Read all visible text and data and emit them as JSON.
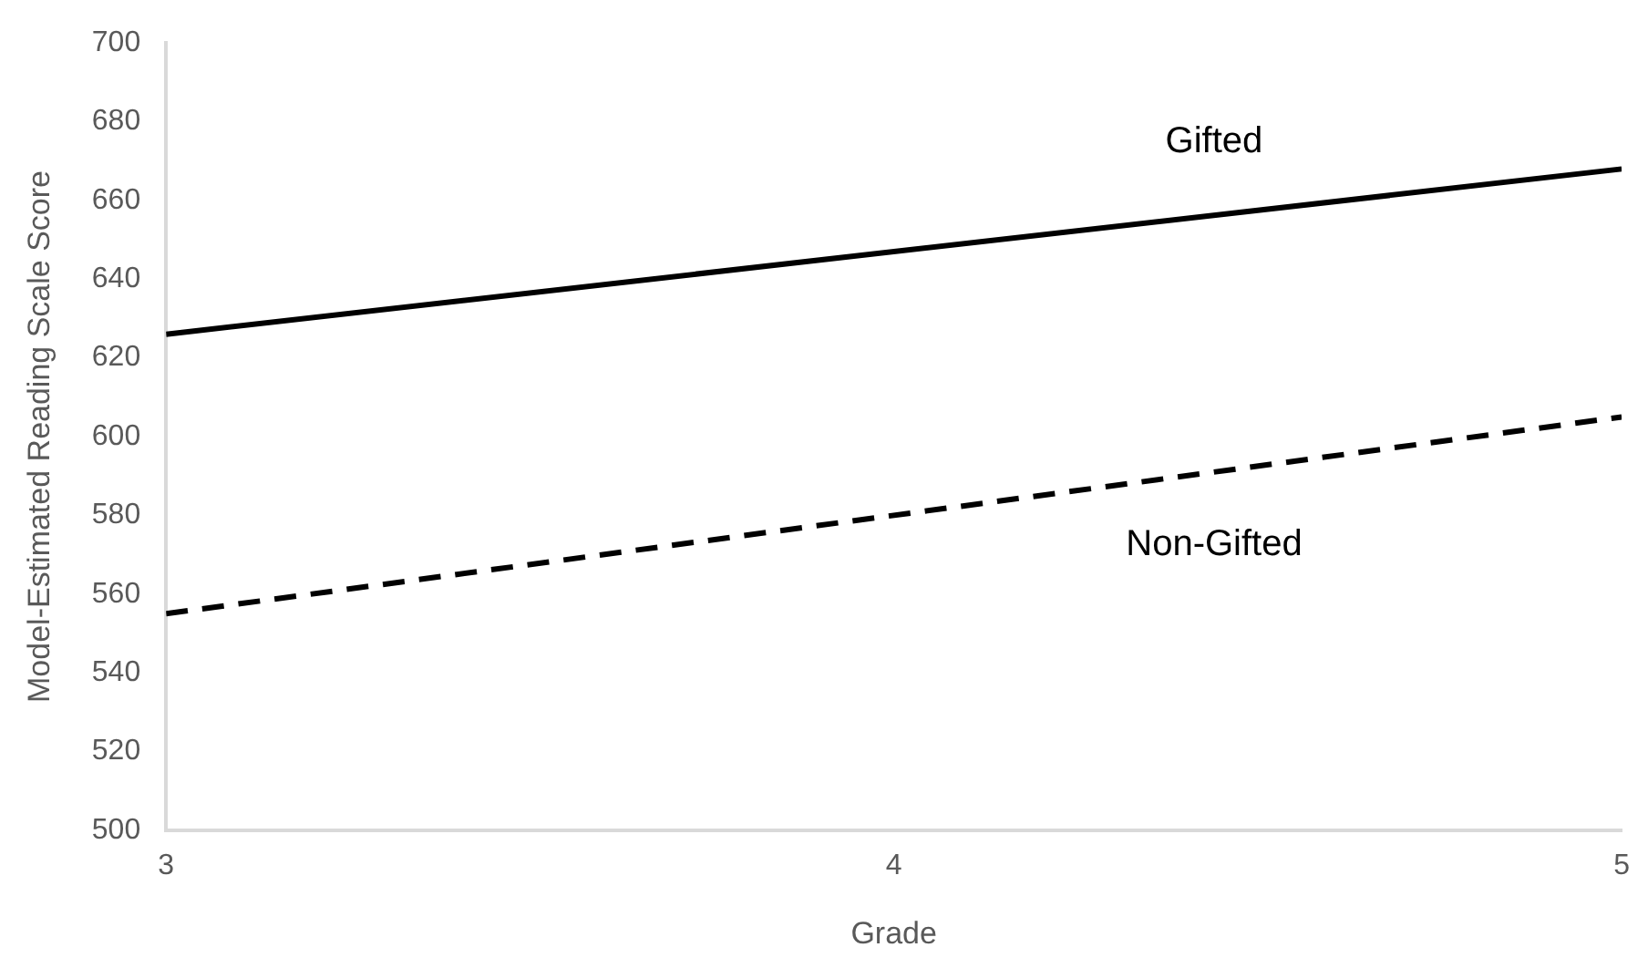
{
  "chart_data": {
    "type": "line",
    "xlabel": "Grade",
    "ylabel": "Model-Estimated Reading Scale Score",
    "x": [
      3,
      5
    ],
    "series": [
      {
        "name": "Gifted",
        "color": "#000000",
        "line_style": "solid",
        "values": [
          626,
          668
        ]
      },
      {
        "name": "Non-Gifted",
        "color": "#000000",
        "line_style": "dashed",
        "values": [
          555,
          605
        ]
      }
    ],
    "xlim": [
      3,
      5
    ],
    "xticks": [
      3,
      4,
      5
    ],
    "ylim": [
      500,
      700
    ],
    "yticks": [
      500,
      520,
      540,
      560,
      580,
      600,
      620,
      640,
      660,
      680,
      700
    ],
    "grid": false,
    "legend": false,
    "marker": "none"
  }
}
